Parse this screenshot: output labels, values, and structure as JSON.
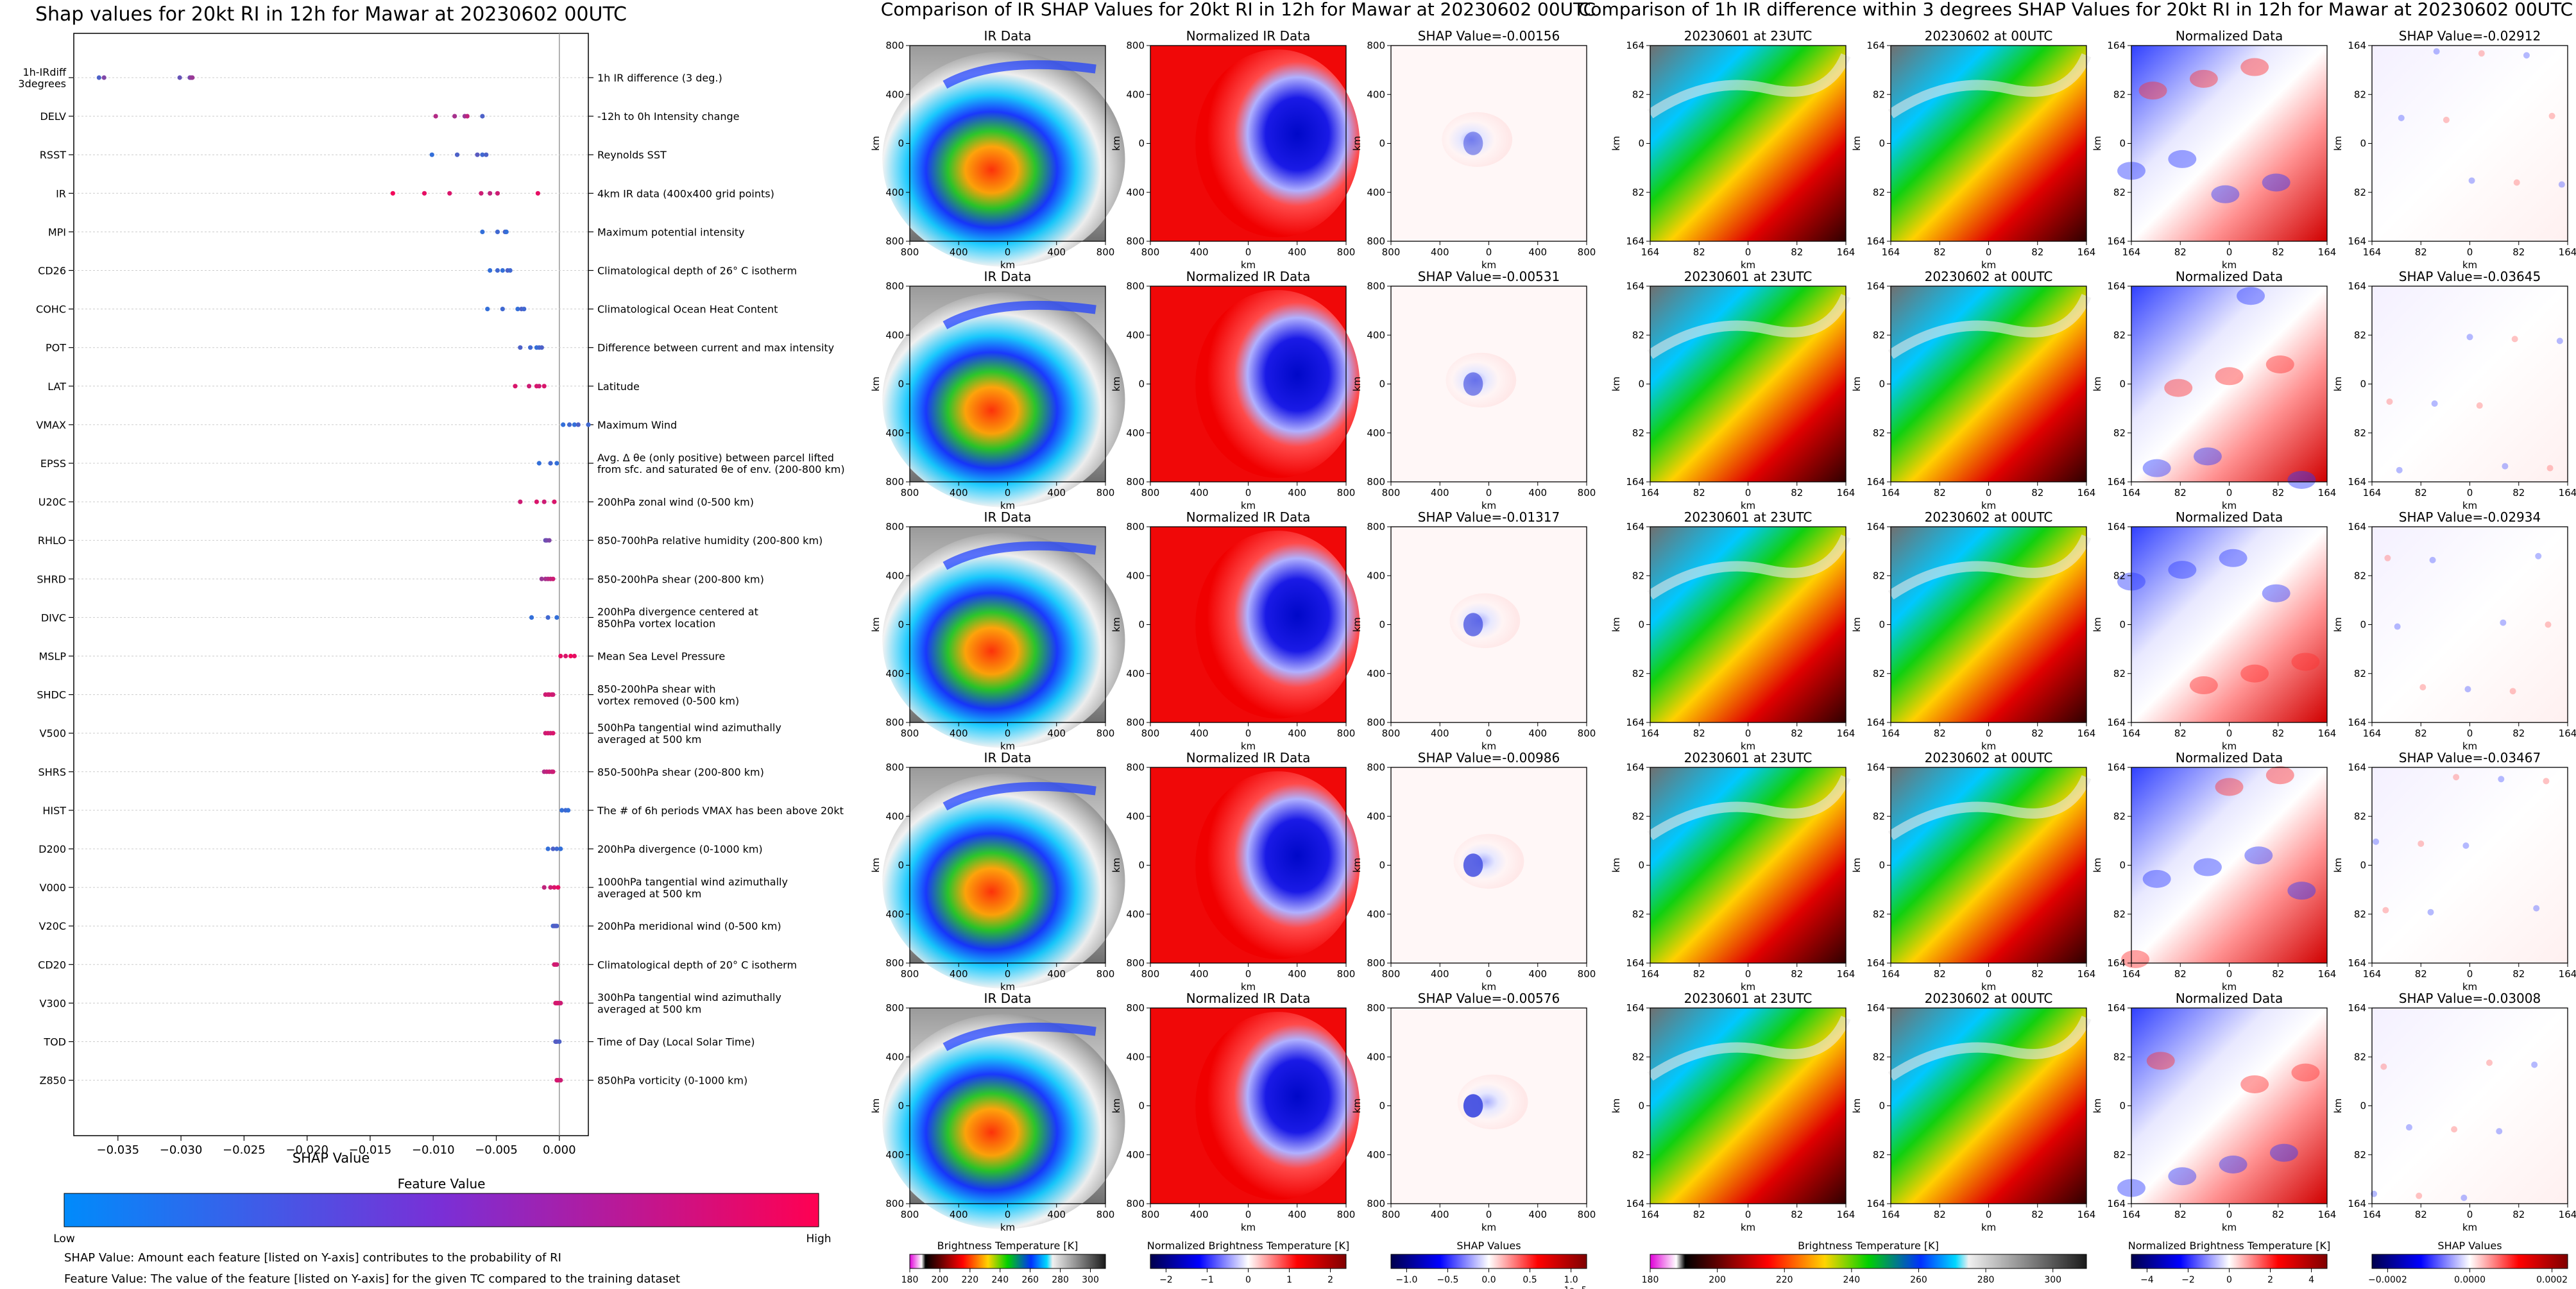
{
  "chart_data": [
    {
      "type": "scatter",
      "title": "Shap values for 20kt RI in 12h for Mawar at 20230602 00UTC",
      "xlabel": "SHAP Value",
      "ylabel": "",
      "xlim": [
        -0.0385,
        0.0023
      ],
      "x_ticks": [
        {
          "value": -0.035,
          "label": "−0.035"
        },
        {
          "value": -0.03,
          "label": "−0.030"
        },
        {
          "value": -0.025,
          "label": "−0.025"
        },
        {
          "value": -0.02,
          "label": "−0.020"
        },
        {
          "value": -0.015,
          "label": "−0.015"
        },
        {
          "value": -0.01,
          "label": "−0.010"
        },
        {
          "value": -0.005,
          "label": "−0.005"
        },
        {
          "value": 0.0,
          "label": "0.000"
        }
      ],
      "features": [
        {
          "code": "1h-IRdiff\n3degrees",
          "desc": "1h IR difference (3 deg.)",
          "points": [
            [
              -0.0365,
              0.3
            ],
            [
              -0.0361,
              0.5
            ],
            [
              -0.0301,
              0.4
            ],
            [
              -0.0293,
              0.45
            ],
            [
              -0.0292,
              0.55
            ],
            [
              -0.0291,
              0.6
            ]
          ]
        },
        {
          "code": "DELV",
          "desc": "-12h to 0h Intensity change",
          "points": [
            [
              -0.0098,
              0.7
            ],
            [
              -0.0083,
              0.65
            ],
            [
              -0.0075,
              0.6
            ],
            [
              -0.0073,
              0.75
            ],
            [
              -0.0061,
              0.3
            ]
          ]
        },
        {
          "code": "RSST",
          "desc": "Reynolds SST",
          "points": [
            [
              -0.0101,
              0.2
            ],
            [
              -0.0081,
              0.3
            ],
            [
              -0.0065,
              0.35
            ],
            [
              -0.0061,
              0.25
            ],
            [
              -0.0058,
              0.3
            ]
          ]
        },
        {
          "code": "IR",
          "desc": "4km IR data (400x400 grid points)",
          "points": [
            [
              -0.0132,
              0.95
            ],
            [
              -0.0107,
              0.9
            ],
            [
              -0.0087,
              0.85
            ],
            [
              -0.0062,
              0.8
            ],
            [
              -0.0055,
              0.75
            ],
            [
              -0.0049,
              0.8
            ],
            [
              -0.0017,
              0.9
            ]
          ]
        },
        {
          "code": "MPI",
          "desc": "Maximum potential intensity",
          "points": [
            [
              -0.0061,
              0.2
            ],
            [
              -0.0049,
              0.25
            ],
            [
              -0.0043,
              0.3
            ],
            [
              -0.0042,
              0.2
            ]
          ]
        },
        {
          "code": "CD26",
          "desc": "Climatological depth of 26° C isotherm",
          "points": [
            [
              -0.0055,
              0.2
            ],
            [
              -0.0049,
              0.25
            ],
            [
              -0.0045,
              0.2
            ],
            [
              -0.0041,
              0.3
            ],
            [
              -0.0039,
              0.25
            ]
          ]
        },
        {
          "code": "COHC",
          "desc": "Climatological Ocean Heat Content",
          "points": [
            [
              -0.0057,
              0.2
            ],
            [
              -0.0045,
              0.25
            ],
            [
              -0.0033,
              0.2
            ],
            [
              -0.003,
              0.3
            ],
            [
              -0.0028,
              0.25
            ]
          ]
        },
        {
          "code": "POT",
          "desc": "Difference between current and max intensity",
          "points": [
            [
              -0.0031,
              0.3
            ],
            [
              -0.0023,
              0.25
            ],
            [
              -0.0018,
              0.2
            ],
            [
              -0.0016,
              0.25
            ],
            [
              -0.0014,
              0.3
            ]
          ]
        },
        {
          "code": "LAT",
          "desc": "Latitude",
          "points": [
            [
              -0.0035,
              0.85
            ],
            [
              -0.0024,
              0.8
            ],
            [
              -0.0018,
              0.85
            ],
            [
              -0.0016,
              0.8
            ],
            [
              -0.0012,
              0.85
            ]
          ]
        },
        {
          "code": "VMAX",
          "desc": "Maximum Wind",
          "points": [
            [
              0.0003,
              0.2
            ],
            [
              0.0008,
              0.25
            ],
            [
              0.0012,
              0.2
            ],
            [
              0.0015,
              0.3
            ],
            [
              0.0023,
              0.25
            ]
          ]
        },
        {
          "code": "EPSS",
          "desc": "Avg. Δ θe (only positive) between parcel lifted\nfrom sfc. and saturated θe of env. (200-800 km)",
          "points": [
            [
              -0.0016,
              0.2
            ],
            [
              -0.0007,
              0.25
            ],
            [
              -0.0002,
              0.2
            ]
          ]
        },
        {
          "code": "U20C",
          "desc": "200hPa zonal wind (0-500 km)",
          "points": [
            [
              -0.0031,
              0.8
            ],
            [
              -0.0018,
              0.85
            ],
            [
              -0.0012,
              0.8
            ],
            [
              -0.0004,
              0.85
            ]
          ]
        },
        {
          "code": "RHLO",
          "desc": "850-700hPa relative humidity (200-800 km)",
          "points": [
            [
              -0.0011,
              0.4
            ],
            [
              -0.001,
              0.45
            ],
            [
              -0.0008,
              0.5
            ]
          ]
        },
        {
          "code": "SHRD",
          "desc": "850-200hPa shear (200-800 km)",
          "points": [
            [
              -0.0014,
              0.6
            ],
            [
              -0.0011,
              0.65
            ],
            [
              -0.0009,
              0.7
            ],
            [
              -0.0007,
              0.75
            ],
            [
              -0.0005,
              0.8
            ]
          ]
        },
        {
          "code": "DIVC",
          "desc": "200hPa divergence centered at\n850hPa vortex location",
          "points": [
            [
              -0.0022,
              0.2
            ],
            [
              -0.0009,
              0.25
            ],
            [
              -0.0002,
              0.2
            ]
          ]
        },
        {
          "code": "MSLP",
          "desc": "Mean Sea Level Pressure",
          "points": [
            [
              0.0001,
              0.9
            ],
            [
              0.0005,
              0.85
            ],
            [
              0.0009,
              0.95
            ],
            [
              0.0012,
              0.9
            ]
          ]
        },
        {
          "code": "SHDC",
          "desc": "850-200hPa shear with\nvortex removed (0-500 km)",
          "points": [
            [
              -0.0011,
              0.8
            ],
            [
              -0.0009,
              0.85
            ],
            [
              -0.0008,
              0.8
            ],
            [
              -0.0006,
              0.85
            ],
            [
              -0.0005,
              0.8
            ]
          ]
        },
        {
          "code": "V500",
          "desc": "500hPa tangential wind azimuthally\naveraged at 500 km",
          "points": [
            [
              -0.0011,
              0.8
            ],
            [
              -0.0009,
              0.85
            ],
            [
              -0.0007,
              0.8
            ],
            [
              -0.0005,
              0.85
            ]
          ]
        },
        {
          "code": "SHRS",
          "desc": "850-500hPa shear (200-800 km)",
          "points": [
            [
              -0.0012,
              0.7
            ],
            [
              -0.001,
              0.75
            ],
            [
              -0.0008,
              0.8
            ],
            [
              -0.0006,
              0.75
            ],
            [
              -0.0005,
              0.8
            ]
          ]
        },
        {
          "code": "HIST",
          "desc": "The # of 6h periods VMAX has been above 20kt",
          "points": [
            [
              0.0002,
              0.2
            ],
            [
              0.0005,
              0.25
            ],
            [
              0.0007,
              0.2
            ]
          ]
        },
        {
          "code": "D200",
          "desc": "200hPa divergence (0-1000 km)",
          "points": [
            [
              -0.0009,
              0.2
            ],
            [
              -0.0005,
              0.3
            ],
            [
              -0.0002,
              0.25
            ],
            [
              0.0001,
              0.2
            ]
          ]
        },
        {
          "code": "V000",
          "desc": "1000hPa tangential wind azimuthally\naveraged at 500 km",
          "points": [
            [
              -0.0012,
              0.75
            ],
            [
              -0.0007,
              0.8
            ],
            [
              -0.0004,
              0.85
            ],
            [
              -0.0001,
              0.9
            ]
          ]
        },
        {
          "code": "V20C",
          "desc": "200hPa meridional wind (0-500 km)",
          "points": [
            [
              -0.0005,
              0.25
            ],
            [
              -0.0004,
              0.3
            ],
            [
              -0.0003,
              0.35
            ],
            [
              -0.0002,
              0.3
            ]
          ]
        },
        {
          "code": "CD20",
          "desc": "Climatological depth of 20° C isotherm",
          "points": [
            [
              -0.0004,
              0.8
            ],
            [
              -0.0003,
              0.85
            ],
            [
              -0.0002,
              0.8
            ]
          ]
        },
        {
          "code": "V300",
          "desc": "300hPa tangential wind azimuthally\naveraged at 500 km",
          "points": [
            [
              -0.0003,
              0.85
            ],
            [
              -0.0002,
              0.8
            ],
            [
              -0.0001,
              0.85
            ],
            [
              0.0001,
              0.8
            ]
          ]
        },
        {
          "code": "TOD",
          "desc": "Time of Day (Local Solar Time)",
          "points": [
            [
              -0.0003,
              0.3
            ],
            [
              -0.0002,
              0.35
            ],
            [
              0.0,
              0.3
            ]
          ]
        },
        {
          "code": "Z850",
          "desc": "850hPa vorticity (0-1000 km)",
          "points": [
            [
              -0.0002,
              0.8
            ],
            [
              -0.0001,
              0.85
            ],
            [
              0.0001,
              0.8
            ]
          ]
        }
      ],
      "colorbar": {
        "title": "Feature Value",
        "low": "Low",
        "high": "High",
        "low_color": "#008bfb",
        "high_color": "#ff0052"
      },
      "notes": [
        "SHAP Value: Amount each feature [listed on Y-axis] contributes to the probability of RI",
        "Feature Value: The value of the feature [listed on Y-axis] for the given TC compared to the training dataset"
      ]
    },
    {
      "type": "heatmap",
      "title": "Comparison of IR SHAP Values for 20kt RI in 12h for Mawar at 20230602 00UTC",
      "columns": [
        "IR Data",
        "Normalized IR Data",
        "SHAP Value"
      ],
      "shap_values": [
        "SHAP Value=-0.00156",
        "SHAP Value=-0.00531",
        "SHAP Value=-0.01317",
        "SHAP Value=-0.00986",
        "SHAP Value=-0.00576"
      ],
      "axis_label": "km",
      "tick_labels": [
        "800",
        "400",
        "0",
        "400",
        "800"
      ],
      "colorbars": [
        {
          "label": "Brightness Temperature [K]",
          "ticks": [
            "180",
            "200",
            "220",
            "240",
            "260",
            "280",
            "300"
          ]
        },
        {
          "label": "Normalized Brightness Temperature [K]",
          "ticks": [
            "−2",
            "−1",
            "0",
            "1",
            "2"
          ]
        },
        {
          "label": "SHAP Values",
          "ticks": [
            "−1.0",
            "−0.5",
            "0.0",
            "0.5",
            "1.0"
          ],
          "exponent": "1e−5"
        }
      ]
    },
    {
      "type": "heatmap",
      "title": "Comparison of 1h IR difference within 3 degrees SHAP Values for 20kt RI in 12h for Mawar at 20230602 00UTC",
      "columns": [
        "20230601 at 23UTC",
        "20230602 at 00UTC",
        "Normalized Data"
      ],
      "shap_values": [
        "SHAP Value=-0.02912",
        "SHAP Value=-0.03645",
        "SHAP Value=-0.02934",
        "SHAP Value=-0.03467",
        "SHAP Value=-0.03008"
      ],
      "axis_label": "km",
      "tick_labels": [
        "164",
        "82",
        "0",
        "82",
        "164"
      ],
      "colorbars": [
        {
          "label": "Brightness Temperature [K]",
          "ticks": [
            "180",
            "200",
            "220",
            "240",
            "260",
            "280",
            "300"
          ]
        },
        {
          "label": "Normalized Brightness Temperature [K]",
          "ticks": [
            "−4",
            "−2",
            "0",
            "2",
            "4"
          ]
        },
        {
          "label": "SHAP Values",
          "ticks": [
            "−0.0002",
            "0.0000",
            "0.0002"
          ]
        }
      ]
    }
  ]
}
